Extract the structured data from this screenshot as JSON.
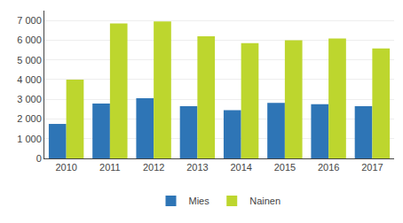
{
  "chart_data": {
    "type": "bar",
    "categories": [
      "2010",
      "2011",
      "2012",
      "2013",
      "2014",
      "2015",
      "2016",
      "2017"
    ],
    "series": [
      {
        "name": "Mies",
        "color": "#2e75b6",
        "values": [
          1750,
          2780,
          3050,
          2650,
          2450,
          2820,
          2750,
          2650
        ]
      },
      {
        "name": "Nainen",
        "color": "#bdd62e",
        "values": [
          4000,
          6850,
          6950,
          6200,
          5850,
          6000,
          6080,
          5580
        ]
      }
    ],
    "ylim": [
      0,
      7500
    ],
    "yticks": [
      0,
      {
        "value": 1000,
        "label": "1 000"
      },
      {
        "value": 2000,
        "label": "2 000"
      },
      {
        "value": 3000,
        "label": "3 000"
      },
      {
        "value": 4000,
        "label": "4 000"
      },
      {
        "value": 5000,
        "label": "5 000"
      },
      {
        "value": 6000,
        "label": "6 000"
      },
      {
        "value": 7000,
        "label": "7 000"
      }
    ],
    "grid": true,
    "legend": "bottom"
  }
}
